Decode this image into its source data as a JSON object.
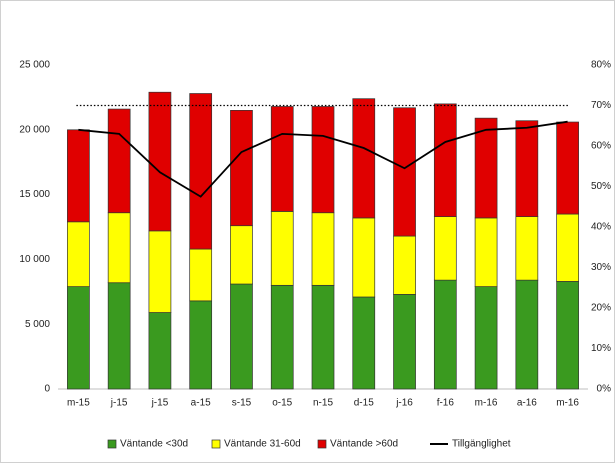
{
  "chart_data": {
    "type": "stacked_bar_line",
    "categories": [
      "m-15",
      "j-15",
      "j-15",
      "a-15",
      "s-15",
      "o-15",
      "n-15",
      "d-15",
      "j-16",
      "f-16",
      "m-16",
      "a-16",
      "m-16"
    ],
    "series": [
      {
        "name": "Väntande <30d",
        "color": "#3a9a1f",
        "values": [
          7900,
          8200,
          5900,
          6800,
          8100,
          8000,
          8000,
          7100,
          7300,
          8400,
          7900,
          8400,
          8300
        ]
      },
      {
        "name": "Väntande 31-60d",
        "color": "#ffff00",
        "values": [
          5000,
          5400,
          6300,
          4000,
          4500,
          5700,
          5600,
          6100,
          4500,
          4900,
          5300,
          4900,
          5200
        ]
      },
      {
        "name": "Väntande >60d",
        "color": "#e00000",
        "values": [
          7100,
          8000,
          10700,
          12000,
          8900,
          8100,
          8200,
          9200,
          9900,
          8700,
          7700,
          7400,
          7100
        ]
      },
      {
        "name": "Tillgänglighet",
        "color": "#000000",
        "axis": "y2",
        "values": [
          64,
          63,
          53.5,
          47.5,
          58.5,
          63,
          62.5,
          59.5,
          54.5,
          61,
          64,
          64.5,
          66
        ]
      }
    ],
    "reference_line": {
      "axis": "y2",
      "value": 70
    },
    "ylim": [
      0,
      25000
    ],
    "yticks": [
      0,
      {
        "value": 5000,
        "label": "5 000"
      },
      {
        "value": 10000,
        "label": "10 000"
      },
      {
        "value": 15000,
        "label": "15 000"
      },
      {
        "value": 20000,
        "label": "20 000"
      },
      {
        "value": 25000,
        "label": "25 000"
      }
    ],
    "y2lim": [
      0,
      80
    ],
    "y2ticks": [
      {
        "value": 0,
        "label": "0%"
      },
      {
        "value": 10,
        "label": "10%"
      },
      {
        "value": 20,
        "label": "20%"
      },
      {
        "value": 30,
        "label": "30%"
      },
      {
        "value": 40,
        "label": "40%"
      },
      {
        "value": 50,
        "label": "50%"
      },
      {
        "value": 60,
        "label": "60%"
      },
      {
        "value": 70,
        "label": "70%"
      },
      {
        "value": 80,
        "label": "80%"
      }
    ],
    "legend": "bottom"
  }
}
